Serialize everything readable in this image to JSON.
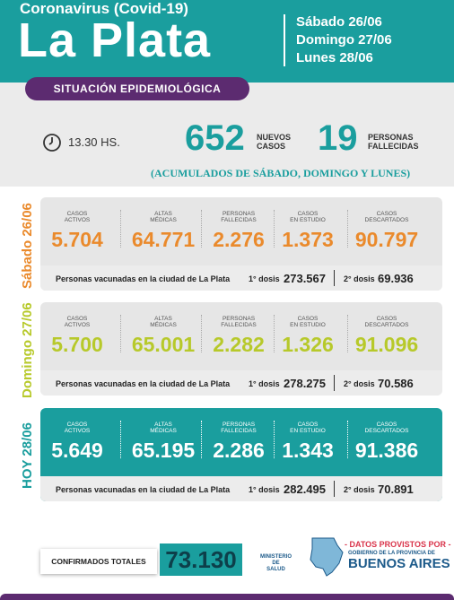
{
  "header": {
    "subtitle": "Coronavirus (Covid-19)",
    "title": "La Plata",
    "dates": [
      "Sábado 26/06",
      "Domingo 27/06",
      "Lunes 28/06"
    ],
    "badge": "SITUACIÓN EPIDEMIOLÓGICA"
  },
  "summary": {
    "time": "13.30 HS.",
    "new_cases": "652",
    "new_cases_label": [
      "NUEVOS",
      "CASOS"
    ],
    "deaths": "19",
    "deaths_label": [
      "PERSONAS",
      "FALLECIDAS"
    ],
    "note": "(ACUMULADOS DE SÁBADO, DOMINGO Y LUNES)"
  },
  "days": {
    "stat_labels": [
      [
        "CASOS",
        "ACTIVOS"
      ],
      [
        "ALTAS",
        "MÉDICAS"
      ],
      [
        "PERSONAS",
        "FALLECIDAS"
      ],
      [
        "CASOS",
        "EN ESTUDIO"
      ],
      [
        "CASOS",
        "DESCARTADOS"
      ]
    ],
    "vaccination_label": "Personas vacunadas en la ciudad de La Plata",
    "dose1_label": "1° dosis",
    "dose2_label": "2° dosis",
    "items": [
      {
        "label": "Sábado 26/06",
        "color": "#ea8a2c",
        "values": [
          "5.704",
          "64.771",
          "2.276",
          "1.373",
          "90.797"
        ],
        "dose1": "273.567",
        "dose2": "69.936"
      },
      {
        "label": "Domingo 27/06",
        "color": "#b7c92a",
        "values": [
          "5.700",
          "65.001",
          "2.282",
          "1.326",
          "91.096"
        ],
        "dose1": "278.275",
        "dose2": "70.586"
      },
      {
        "label": "HOY 28/06",
        "color": "#1a9e9e",
        "values": [
          "5.649",
          "65.195",
          "2.286",
          "1.343",
          "91.386"
        ],
        "dose1": "282.495",
        "dose2": "70.891"
      }
    ]
  },
  "footer": {
    "confirmed_label": "CONFIRMADOS TOTALES",
    "confirmed": "73.130",
    "ministry": [
      "MINISTERIO",
      "DE",
      "SALUD"
    ],
    "provided": "- DATOS PROVISTOS POR -",
    "government": [
      "GOBIERNO DE LA PROVINCIA DE",
      "BUENOS AIRES"
    ]
  }
}
